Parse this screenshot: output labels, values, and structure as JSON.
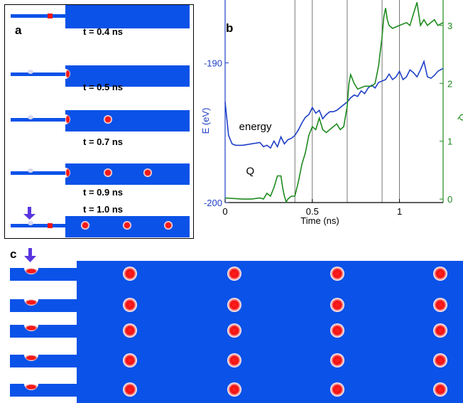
{
  "panel_a": {
    "label": "a",
    "snapshots": [
      {
        "time_label": "t = 0.4 ns",
        "left_blob": false,
        "ring_blob": false,
        "ring_red": true,
        "arrow": false,
        "free_bubbles": 0
      },
      {
        "time_label": "t = 0.5 ns",
        "left_blob": true,
        "ring_blob": true,
        "ring_red": false,
        "arrow": false,
        "free_bubbles": 0
      },
      {
        "time_label": "t = 0.7 ns",
        "left_blob": true,
        "ring_blob": true,
        "ring_red": false,
        "arrow": false,
        "free_bubbles": 1
      },
      {
        "time_label": "t = 0.9 ns",
        "left_blob": true,
        "ring_blob": true,
        "ring_red": false,
        "arrow": false,
        "free_bubbles": 2
      },
      {
        "time_label": "t = 1.0 ns",
        "left_blob": true,
        "ring_blob": false,
        "ring_red": true,
        "arrow": true,
        "free_bubbles": 3
      }
    ]
  },
  "panel_b": {
    "label": "b",
    "chart_data": {
      "type": "line",
      "xlabel": "Time (ns)",
      "ylabel_left": "E (eV)",
      "ylabel_right": "Q",
      "xlim": [
        0,
        1.25
      ],
      "ylim_left": [
        -200,
        -185.5
      ],
      "ylim_right": [
        -0.06,
        3.44
      ],
      "x_ticks": [
        0,
        0.5,
        1
      ],
      "x_tick_labels": [
        "0",
        "0.5",
        "1"
      ],
      "y_left_ticks": [
        -190,
        -200
      ],
      "y_left_tick_labels": [
        "-190",
        "-200"
      ],
      "y_right_ticks": [
        0,
        1,
        2,
        3
      ],
      "y_right_tick_labels": [
        "0",
        "1",
        "2",
        "3"
      ],
      "vertical_lines": [
        0.4,
        0.5,
        0.7,
        0.9,
        1.0
      ],
      "annotations": [
        {
          "text": "energy",
          "x": 0.08,
          "y_left": -194.8
        },
        {
          "text": "Q",
          "x": 0.12,
          "y_left": -198.0
        }
      ],
      "series": [
        {
          "name": "energy",
          "axis": "left",
          "color": "#1f3fc6",
          "x": [
            0.0,
            0.005,
            0.02,
            0.04,
            0.06,
            0.1,
            0.15,
            0.2,
            0.22,
            0.24,
            0.26,
            0.28,
            0.3,
            0.32,
            0.34,
            0.36,
            0.38,
            0.4,
            0.42,
            0.44,
            0.46,
            0.48,
            0.5,
            0.52,
            0.54,
            0.56,
            0.58,
            0.6,
            0.62,
            0.64,
            0.66,
            0.68,
            0.7,
            0.72,
            0.74,
            0.76,
            0.78,
            0.8,
            0.82,
            0.84,
            0.86,
            0.88,
            0.9,
            0.92,
            0.94,
            0.96,
            0.98,
            1.0,
            1.02,
            1.04,
            1.06,
            1.08,
            1.1,
            1.12,
            1.14,
            1.16,
            1.18,
            1.2,
            1.22,
            1.25
          ],
          "y": [
            -192.8,
            -193.4,
            -195.2,
            -195.8,
            -195.9,
            -195.9,
            -195.8,
            -195.7,
            -196.0,
            -195.9,
            -196.1,
            -195.6,
            -196.0,
            -195.3,
            -195.8,
            -195.5,
            -195.4,
            -195.2,
            -194.8,
            -194.3,
            -193.9,
            -193.7,
            -193.2,
            -193.6,
            -193.4,
            -194.0,
            -193.7,
            -193.5,
            -193.5,
            -193.4,
            -193.2,
            -193.0,
            -192.8,
            -192.5,
            -192.3,
            -192.4,
            -192.0,
            -192.2,
            -191.8,
            -191.6,
            -191.8,
            -191.4,
            -191.3,
            -191.2,
            -190.8,
            -191.2,
            -191.0,
            -190.6,
            -191.2,
            -191.0,
            -190.5,
            -190.7,
            -191.0,
            -190.5,
            -189.9,
            -191.0,
            -191.1,
            -190.9,
            -190.6,
            -190.4
          ]
        },
        {
          "name": "Q",
          "axis": "right",
          "color": "#1e8a1e",
          "x": [
            0.0,
            0.05,
            0.1,
            0.15,
            0.2,
            0.22,
            0.24,
            0.26,
            0.28,
            0.3,
            0.32,
            0.33,
            0.34,
            0.35,
            0.36,
            0.38,
            0.4,
            0.42,
            0.44,
            0.46,
            0.48,
            0.5,
            0.52,
            0.54,
            0.56,
            0.58,
            0.6,
            0.62,
            0.64,
            0.66,
            0.68,
            0.7,
            0.71,
            0.72,
            0.74,
            0.76,
            0.8,
            0.84,
            0.86,
            0.88,
            0.9,
            0.91,
            0.92,
            0.93,
            0.94,
            0.96,
            1.0,
            1.04,
            1.06,
            1.08,
            1.1,
            1.12,
            1.14,
            1.16,
            1.18,
            1.2,
            1.22,
            1.25
          ],
          "y": [
            0.02,
            0.01,
            0.0,
            0.0,
            0.02,
            0.0,
            0.1,
            0.05,
            0.2,
            0.4,
            0.4,
            0.2,
            0.05,
            -0.05,
            0.0,
            0.05,
            0.05,
            0.3,
            0.6,
            0.8,
            1.1,
            1.25,
            1.2,
            1.4,
            1.2,
            1.15,
            1.2,
            1.25,
            1.3,
            1.2,
            1.25,
            1.6,
            2.0,
            2.15,
            2.0,
            1.9,
            1.95,
            1.95,
            2.0,
            2.3,
            2.8,
            3.15,
            3.3,
            3.1,
            3.0,
            2.95,
            3.0,
            3.05,
            3.0,
            3.2,
            3.4,
            3.0,
            3.1,
            3.0,
            3.05,
            3.1,
            3.0,
            3.05
          ]
        }
      ]
    }
  },
  "panel_c": {
    "label": "c",
    "rows": 5,
    "columns": 4
  },
  "colors": {
    "blue": "#0b52e8",
    "red": "#ee1111",
    "arrow": "#5a35e0",
    "energy": "#1f3fc6",
    "q": "#1e8a1e"
  }
}
